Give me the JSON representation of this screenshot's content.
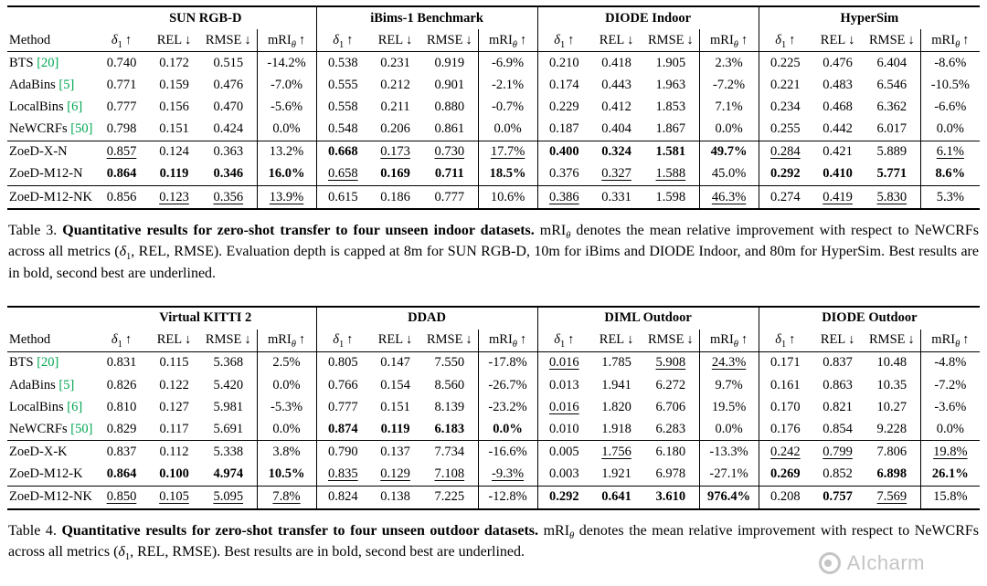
{
  "colors": {
    "citation": "#00a651",
    "text": "#000000",
    "watermark": "#c2c2c2"
  },
  "watermark": {
    "text": "AIcharm"
  },
  "metrics": [
    {
      "name": "δ",
      "sub": "1",
      "sub_italic": false,
      "italic": true,
      "arrow": "↑"
    },
    {
      "name": "REL",
      "sub": "",
      "sub_italic": false,
      "italic": false,
      "arrow": "↓"
    },
    {
      "name": "RMSE",
      "sub": "",
      "sub_italic": false,
      "italic": false,
      "arrow": "↓"
    },
    {
      "name": "mRI",
      "sub": "θ",
      "sub_italic": true,
      "italic": false,
      "arrow": "↑"
    }
  ],
  "tables": [
    {
      "name": "table-3",
      "method_header": "Method",
      "groups": [
        "SUN RGB-D",
        "iBims-1 Benchmark",
        "DIODE Indoor",
        "HyperSim"
      ],
      "sections": [
        [
          {
            "method": "BTS",
            "cite": "[20]",
            "cells": [
              "0.740",
              "0.172",
              "0.515",
              "-14.2%",
              "0.538",
              "0.231",
              "0.919",
              "-6.9%",
              "0.210",
              "0.418",
              "1.905",
              "2.3%",
              "0.225",
              "0.476",
              "6.404",
              "-8.6%"
            ]
          },
          {
            "method": "AdaBins",
            "cite": "[5]",
            "cells": [
              "0.771",
              "0.159",
              "0.476",
              "-7.0%",
              "0.555",
              "0.212",
              "0.901",
              "-2.1%",
              "0.174",
              "0.443",
              "1.963",
              "-7.2%",
              "0.221",
              "0.483",
              "6.546",
              "-10.5%"
            ]
          },
          {
            "method": "LocalBins",
            "cite": "[6]",
            "cells": [
              "0.777",
              "0.156",
              "0.470",
              "-5.6%",
              "0.558",
              "0.211",
              "0.880",
              "-0.7%",
              "0.229",
              "0.412",
              "1.853",
              "7.1%",
              "0.234",
              "0.468",
              "6.362",
              "-6.6%"
            ]
          },
          {
            "method": "NeWCRFs",
            "cite": "[50]",
            "cells": [
              "0.798",
              "0.151",
              "0.424",
              "0.0%",
              "0.548",
              "0.206",
              "0.861",
              "0.0%",
              "0.187",
              "0.404",
              "1.867",
              "0.0%",
              "0.255",
              "0.442",
              "6.017",
              "0.0%"
            ]
          }
        ],
        [
          {
            "method": "ZoeD-X-N",
            "cite": "",
            "cells": [
              "_0.857",
              "0.124",
              "0.363",
              "13.2%",
              "*0.668",
              "_0.173",
              "_0.730",
              "_17.7%",
              "*0.400",
              "*0.324",
              "*1.581",
              "*49.7%",
              "_0.284",
              "0.421",
              "5.889",
              "_6.1%"
            ]
          },
          {
            "method": "ZoeD-M12-N",
            "cite": "",
            "cells": [
              "*0.864",
              "*0.119",
              "*0.346",
              "*16.0%",
              "_0.658",
              "*0.169",
              "*0.711",
              "*18.5%",
              "0.376",
              "_0.327",
              "_1.588",
              "45.0%",
              "*0.292",
              "*0.410",
              "*5.771",
              "*8.6%"
            ]
          }
        ],
        [
          {
            "method": "ZoeD-M12-NK",
            "cite": "",
            "cells": [
              "0.856",
              "_0.123",
              "_0.356",
              "_13.9%",
              "0.615",
              "0.186",
              "0.777",
              "10.6%",
              "_0.386",
              "0.331",
              "1.598",
              "_46.3%",
              "0.274",
              "_0.419",
              "_5.830",
              "5.3%"
            ]
          }
        ]
      ],
      "caption": [
        {
          "t": "label",
          "v": "Table 3. "
        },
        {
          "t": "bold",
          "v": "Quantitative results for zero-shot transfer to four unseen indoor datasets."
        },
        {
          "t": "text",
          "v": " mRI"
        },
        {
          "t": "subi",
          "v": "θ"
        },
        {
          "t": "text",
          "v": " denotes the mean relative improvement with respect to NeWCRFs across all metrics ("
        },
        {
          "t": "math",
          "v": "δ"
        },
        {
          "t": "sub",
          "v": "1"
        },
        {
          "t": "text",
          "v": ", REL, RMSE). Evaluation depth is capped at 8m for SUN RGB-D, 10m for iBims and DIODE Indoor, and 80m for HyperSim. Best results are in bold, second best are underlined."
        }
      ]
    },
    {
      "name": "table-4",
      "method_header": "Method",
      "groups": [
        "Virtual KITTI 2",
        "DDAD",
        "DIML Outdoor",
        "DIODE Outdoor"
      ],
      "sections": [
        [
          {
            "method": "BTS",
            "cite": "[20]",
            "cells": [
              "0.831",
              "0.115",
              "5.368",
              "2.5%",
              "0.805",
              "0.147",
              "7.550",
              "-17.8%",
              "_0.016",
              "1.785",
              "_5.908",
              "_24.3%",
              "0.171",
              "0.837",
              "10.48",
              "-4.8%"
            ]
          },
          {
            "method": "AdaBins",
            "cite": "[5]",
            "cells": [
              "0.826",
              "0.122",
              "5.420",
              "0.0%",
              "0.766",
              "0.154",
              "8.560",
              "-26.7%",
              "0.013",
              "1.941",
              "6.272",
              "9.7%",
              "0.161",
              "0.863",
              "10.35",
              "-7.2%"
            ]
          },
          {
            "method": "LocalBins",
            "cite": "[6]",
            "cells": [
              "0.810",
              "0.127",
              "5.981",
              "-5.3%",
              "0.777",
              "0.151",
              "8.139",
              "-23.2%",
              "_0.016",
              "1.820",
              "6.706",
              "19.5%",
              "0.170",
              "0.821",
              "10.27",
              "-3.6%"
            ]
          },
          {
            "method": "NeWCRFs",
            "cite": "[50]",
            "cells": [
              "0.829",
              "0.117",
              "5.691",
              "0.0%",
              "*0.874",
              "*0.119",
              "*6.183",
              "*0.0%",
              "0.010",
              "1.918",
              "6.283",
              "0.0%",
              "0.176",
              "0.854",
              "9.228",
              "0.0%"
            ]
          }
        ],
        [
          {
            "method": "ZoeD-X-K",
            "cite": "",
            "cells": [
              "0.837",
              "0.112",
              "5.338",
              "3.8%",
              "0.790",
              "0.137",
              "7.734",
              "-16.6%",
              "0.005",
              "_1.756",
              "6.180",
              "-13.3%",
              "_0.242",
              "_0.799",
              "7.806",
              "_19.8%"
            ]
          },
          {
            "method": "ZoeD-M12-K",
            "cite": "",
            "cells": [
              "*0.864",
              "*0.100",
              "*4.974",
              "*10.5%",
              "_0.835",
              "_0.129",
              "_7.108",
              "_-9.3%",
              "0.003",
              "1.921",
              "6.978",
              "-27.1%",
              "*0.269",
              "0.852",
              "*6.898",
              "*26.1%"
            ]
          }
        ],
        [
          {
            "method": "ZoeD-M12-NK",
            "cite": "",
            "cells": [
              "_0.850",
              "_0.105",
              "_5.095",
              "_7.8%",
              "0.824",
              "0.138",
              "7.225",
              "-12.8%",
              "*0.292",
              "*0.641",
              "*3.610",
              "*976.4%",
              "0.208",
              "*0.757",
              "_7.569",
              "15.8%"
            ]
          }
        ]
      ],
      "caption": [
        {
          "t": "label",
          "v": "Table 4. "
        },
        {
          "t": "bold",
          "v": "Quantitative results for zero-shot transfer to four unseen outdoor datasets."
        },
        {
          "t": "text",
          "v": " mRI"
        },
        {
          "t": "subi",
          "v": "θ"
        },
        {
          "t": "text",
          "v": " denotes the mean relative improvement with respect to NeWCRFs across all metrics ("
        },
        {
          "t": "math",
          "v": "δ"
        },
        {
          "t": "sub",
          "v": "1"
        },
        {
          "t": "text",
          "v": ", REL, RMSE). Best results are in bold, second best are underlined."
        }
      ]
    }
  ]
}
